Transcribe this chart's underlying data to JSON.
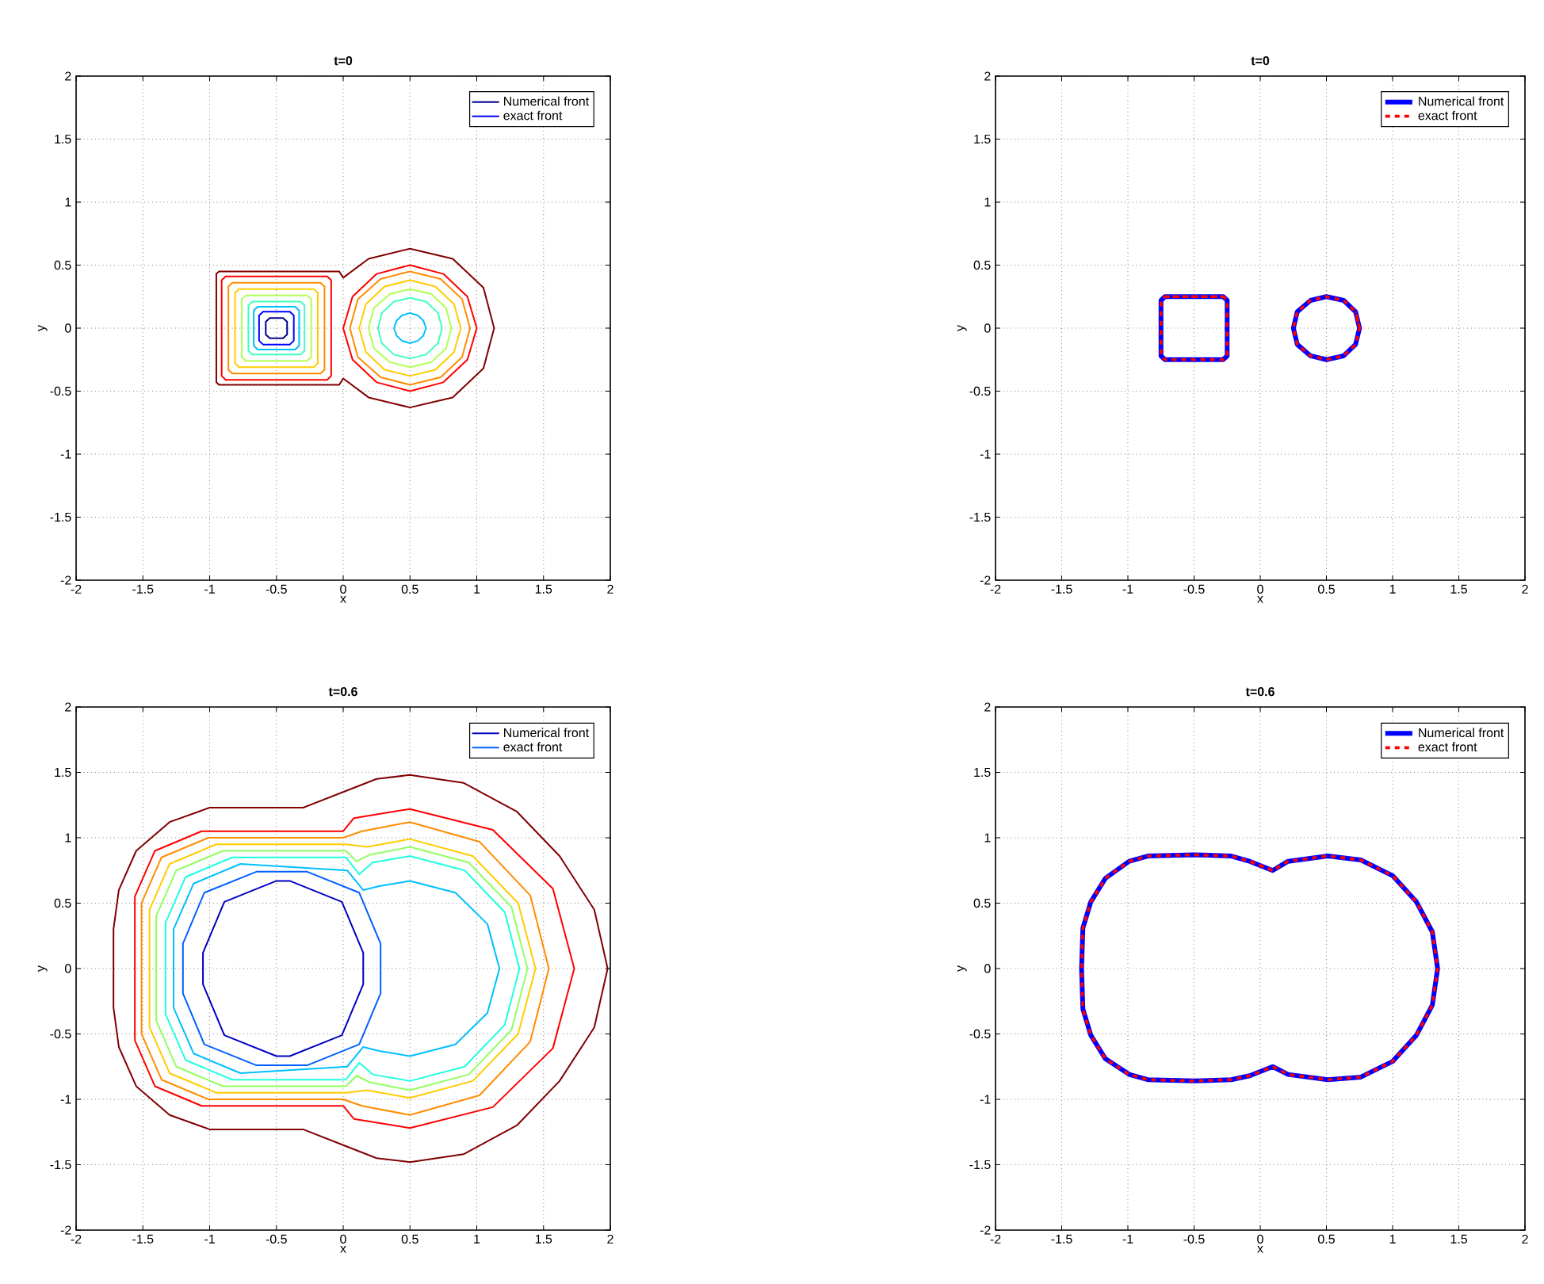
{
  "chart_data": [
    {
      "type": "line",
      "title": "t=0",
      "xlabel": "x",
      "ylabel": "y",
      "xlim": [
        -2,
        2
      ],
      "ylim": [
        -2,
        2
      ],
      "xticks": [
        -2,
        -1.5,
        -1,
        -0.5,
        0,
        0.5,
        1,
        1.5,
        2
      ],
      "yticks": [
        -2,
        -1.5,
        -1,
        -0.5,
        0,
        0.5,
        1,
        1.5,
        2
      ],
      "grid": true,
      "legend": "top right",
      "series": [
        {
          "name": "Numerical front",
          "color": "#00008f",
          "x": [
            -0.55,
            -0.45,
            -0.42,
            -0.42,
            -0.45,
            -0.55,
            -0.58,
            -0.58,
            -0.55,
            -0.45
          ],
          "values": [
            0.08,
            0.08,
            0.05,
            -0.05,
            -0.08,
            -0.08,
            -0.05,
            0.05,
            0.08,
            0.08
          ]
        },
        {
          "name": "exact front",
          "color": "#0000ff",
          "x": [
            -0.6,
            -0.4,
            -0.37,
            -0.37,
            -0.4,
            -0.6,
            -0.63,
            -0.63,
            -0.6,
            -0.4
          ],
          "values": [
            0.13,
            0.13,
            0.1,
            -0.1,
            -0.13,
            -0.13,
            -0.1,
            0.1,
            0.13,
            0.13
          ]
        },
        {
          "color": "#800000",
          "x": [
            -0.03,
            -0.93,
            -0.95,
            -0.95,
            -0.93,
            -0.03,
            0.0,
            0.19,
            0.5,
            0.82,
            1.05,
            1.13,
            1.05,
            0.82,
            0.5,
            0.19,
            0.0,
            -0.03,
            -0.93
          ],
          "values": [
            0.45,
            0.45,
            0.43,
            -0.43,
            -0.45,
            -0.45,
            -0.4,
            -0.55,
            -0.63,
            -0.55,
            -0.32,
            0,
            0.32,
            0.55,
            0.63,
            0.55,
            0.4,
            0.45,
            0.45
          ]
        },
        {
          "color": "#ff0000",
          "x": [
            -0.88,
            -0.12,
            -0.09,
            -0.09,
            -0.12,
            -0.88,
            -0.91,
            -0.91,
            -0.88,
            -0.12,
            null,
            1.0,
            0.93,
            0.75,
            0.5,
            0.25,
            0.07,
            0,
            0.07,
            0.25,
            0.5,
            0.75,
            0.93,
            1.0,
            0.93
          ],
          "values": [
            0.41,
            0.41,
            0.38,
            -0.38,
            -0.41,
            -0.41,
            -0.38,
            0.38,
            0.41,
            0.41,
            null,
            0,
            0.25,
            0.43,
            0.5,
            0.43,
            0.25,
            0,
            -0.25,
            -0.43,
            -0.5,
            -0.43,
            -0.25,
            0,
            0.25
          ]
        },
        {
          "color": "#ff8c00",
          "x": [
            -0.83,
            -0.17,
            -0.14,
            -0.14,
            -0.17,
            -0.83,
            -0.86,
            -0.86,
            -0.83,
            -0.17,
            null,
            0.95,
            0.89,
            0.73,
            0.5,
            0.28,
            0.11,
            0.05,
            0.11,
            0.28,
            0.5,
            0.73,
            0.89,
            0.95,
            0.89
          ],
          "values": [
            0.36,
            0.36,
            0.33,
            -0.33,
            -0.36,
            -0.36,
            -0.33,
            0.33,
            0.36,
            0.36,
            null,
            0,
            0.23,
            0.39,
            0.45,
            0.39,
            0.23,
            0,
            -0.23,
            -0.39,
            -0.45,
            -0.39,
            -0.23,
            0,
            0.23
          ]
        },
        {
          "color": "#ffcc00",
          "x": [
            -0.78,
            -0.22,
            -0.19,
            -0.19,
            -0.22,
            -0.78,
            -0.81,
            -0.81,
            -0.78,
            -0.22,
            null,
            0.88,
            0.83,
            0.69,
            0.5,
            0.31,
            0.17,
            0.12,
            0.17,
            0.31,
            0.5,
            0.69,
            0.83,
            0.88,
            0.83
          ],
          "values": [
            0.31,
            0.31,
            0.28,
            -0.28,
            -0.31,
            -0.31,
            -0.28,
            0.28,
            0.31,
            0.31,
            null,
            0,
            0.19,
            0.33,
            0.38,
            0.33,
            0.19,
            0,
            -0.19,
            -0.33,
            -0.38,
            -0.33,
            -0.19,
            0,
            0.19
          ]
        },
        {
          "color": "#b0ff50",
          "x": [
            -0.73,
            -0.27,
            -0.24,
            -0.24,
            -0.27,
            -0.73,
            -0.76,
            -0.76,
            -0.73,
            -0.27,
            null,
            0.81,
            0.77,
            0.66,
            0.5,
            0.35,
            0.23,
            0.19,
            0.23,
            0.35,
            0.5,
            0.66,
            0.77,
            0.81,
            0.77
          ],
          "values": [
            0.26,
            0.26,
            0.23,
            -0.23,
            -0.26,
            -0.26,
            -0.23,
            0.23,
            0.26,
            0.26,
            null,
            0,
            0.16,
            0.27,
            0.31,
            0.27,
            0.16,
            0,
            -0.16,
            -0.27,
            -0.31,
            -0.27,
            -0.16,
            0,
            0.16
          ]
        },
        {
          "color": "#40ffbf",
          "x": [
            -0.68,
            -0.32,
            -0.29,
            -0.29,
            -0.32,
            -0.68,
            -0.71,
            -0.71,
            -0.68,
            -0.32,
            null,
            0.74,
            0.71,
            0.62,
            0.5,
            0.38,
            0.29,
            0.26,
            0.29,
            0.38,
            0.5,
            0.62,
            0.71,
            0.74,
            0.71
          ],
          "values": [
            0.21,
            0.21,
            0.18,
            -0.18,
            -0.21,
            -0.21,
            -0.18,
            0.18,
            0.21,
            0.21,
            null,
            0,
            0.12,
            0.21,
            0.24,
            0.21,
            0.12,
            0,
            -0.12,
            -0.21,
            -0.24,
            -0.21,
            -0.12,
            0,
            0.12
          ]
        },
        {
          "color": "#00bfff",
          "x": [
            -0.64,
            -0.36,
            -0.33,
            -0.33,
            -0.36,
            -0.64,
            -0.67,
            -0.67,
            -0.64,
            -0.36,
            null,
            0.62,
            0.6,
            0.56,
            0.5,
            0.44,
            0.4,
            0.38,
            0.4,
            0.44,
            0.5,
            0.56,
            0.6,
            0.62,
            0.6
          ],
          "values": [
            0.17,
            0.17,
            0.14,
            -0.14,
            -0.17,
            -0.17,
            -0.14,
            0.14,
            0.17,
            0.17,
            null,
            0,
            0.06,
            0.1,
            0.12,
            0.1,
            0.06,
            0,
            -0.06,
            -0.1,
            -0.12,
            -0.1,
            -0.06,
            0,
            0.06
          ]
        }
      ]
    },
    {
      "type": "line",
      "title": "t=0",
      "xlabel": "x",
      "ylabel": "y",
      "xlim": [
        -2,
        2
      ],
      "ylim": [
        -2,
        2
      ],
      "xticks": [
        -2,
        -1.5,
        -1,
        -0.5,
        0,
        0.5,
        1,
        1.5,
        2
      ],
      "yticks": [
        -2,
        -1.5,
        -1,
        -0.5,
        0,
        0.5,
        1,
        1.5,
        2
      ],
      "grid": true,
      "legend": "top right",
      "series": [
        {
          "name": "Numerical front",
          "color": "#0000ff",
          "x": [
            -0.72,
            -0.28,
            -0.25,
            -0.25,
            -0.28,
            -0.72,
            -0.75,
            -0.75,
            -0.72,
            -0.28,
            null,
            0.75,
            0.72,
            0.63,
            0.5,
            0.38,
            0.28,
            0.25,
            0.28,
            0.38,
            0.5,
            0.63,
            0.72,
            0.75,
            0.72
          ],
          "values": [
            0.25,
            0.25,
            0.22,
            -0.22,
            -0.25,
            -0.25,
            -0.22,
            0.22,
            0.25,
            0.25,
            null,
            0,
            0.13,
            0.22,
            0.25,
            0.22,
            0.13,
            0,
            -0.13,
            -0.22,
            -0.25,
            -0.22,
            -0.13,
            0,
            0.13
          ]
        },
        {
          "name": "exact front",
          "color": "#ff0000",
          "line_style": "dashed",
          "x": [
            -0.72,
            -0.28,
            -0.25,
            -0.25,
            -0.28,
            -0.72,
            -0.75,
            -0.75,
            -0.72,
            -0.28,
            null,
            0.75,
            0.72,
            0.63,
            0.5,
            0.38,
            0.28,
            0.25,
            0.28,
            0.38,
            0.5,
            0.63,
            0.72,
            0.75,
            0.72
          ],
          "values": [
            0.25,
            0.25,
            0.22,
            -0.22,
            -0.25,
            -0.25,
            -0.22,
            0.22,
            0.25,
            0.25,
            null,
            0,
            0.13,
            0.22,
            0.25,
            0.22,
            0.13,
            0,
            -0.13,
            -0.22,
            -0.25,
            -0.22,
            -0.13,
            0,
            0.13
          ]
        }
      ]
    },
    {
      "type": "line",
      "title": "t=0.6",
      "xlabel": "x",
      "ylabel": "y",
      "xlim": [
        -2,
        2
      ],
      "ylim": [
        -2,
        2
      ],
      "xticks": [
        -2,
        -1.5,
        -1,
        -0.5,
        0,
        0.5,
        1,
        1.5,
        2
      ],
      "yticks": [
        -2,
        -1.5,
        -1,
        -0.5,
        0,
        0.5,
        1,
        1.5,
        2
      ],
      "grid": true,
      "legend": "top right",
      "series": [
        {
          "name": "Numerical front",
          "color": "#0000c0",
          "x": [
            0.15,
            -0.01,
            -0.4,
            -0.5,
            -0.89,
            -1.05,
            -1.05,
            -0.89,
            -0.5,
            -0.4,
            -0.01,
            0.15,
            0.15,
            -0.01
          ],
          "values": [
            0.12,
            0.51,
            0.67,
            0.67,
            0.51,
            0.12,
            -0.12,
            -0.51,
            -0.67,
            -0.67,
            -0.51,
            -0.12,
            0.12,
            0.51
          ]
        },
        {
          "name": "exact front",
          "color": "#0060ff",
          "x": [
            0.28,
            0.12,
            -0.27,
            -0.65,
            -1.04,
            -1.2,
            -1.2,
            -1.04,
            -0.65,
            -0.27,
            0.12,
            0.28,
            0.28,
            0.12
          ],
          "values": [
            0.19,
            0.58,
            0.74,
            0.74,
            0.58,
            0.19,
            -0.19,
            -0.58,
            -0.74,
            -0.74,
            -0.58,
            -0.19,
            0.19,
            0.58
          ]
        },
        {
          "color": "#800000",
          "x": [
            -0.3,
            -1.0,
            -1.3,
            -1.55,
            -1.68,
            -1.72,
            -1.72,
            -1.68,
            -1.55,
            -1.3,
            -1.0,
            -0.3,
            0.0,
            0.25,
            0.5,
            0.9,
            1.3,
            1.62,
            1.88,
            1.98,
            1.88,
            1.62,
            1.3,
            0.9,
            0.5,
            0.25,
            0.0,
            -0.3,
            -1.0
          ],
          "values": [
            1.23,
            1.23,
            1.12,
            0.9,
            0.6,
            0.3,
            -0.3,
            -0.6,
            -0.9,
            -1.12,
            -1.23,
            -1.23,
            -1.35,
            -1.45,
            -1.48,
            -1.42,
            -1.2,
            -0.86,
            -0.45,
            0,
            0.45,
            0.86,
            1.2,
            1.42,
            1.48,
            1.45,
            1.35,
            1.23,
            1.23
          ]
        },
        {
          "color": "#ff0000",
          "x": [
            1.73,
            1.57,
            1.12,
            0.5,
            0.08,
            0.0,
            -1.06,
            -1.41,
            -1.56,
            -1.56,
            -1.41,
            -1.06,
            0.0,
            0.08,
            0.5,
            1.12,
            1.57,
            1.73,
            1.57
          ],
          "values": [
            0,
            0.61,
            1.06,
            1.22,
            1.15,
            1.05,
            1.05,
            0.9,
            0.55,
            -0.55,
            -0.9,
            -1.05,
            -1.05,
            -1.15,
            -1.22,
            -1.06,
            -0.61,
            0,
            0.61
          ]
        },
        {
          "color": "#ff8c00",
          "x": [
            1.54,
            1.4,
            1.02,
            0.5,
            0.14,
            0.0,
            -1.01,
            -1.36,
            -1.51,
            -1.51,
            -1.36,
            -1.01,
            0.0,
            0.14,
            0.5,
            1.02,
            1.4,
            1.54,
            1.4
          ],
          "values": [
            0,
            0.56,
            0.97,
            1.12,
            1.05,
            1.0,
            1.0,
            0.85,
            0.5,
            -0.5,
            -0.85,
            -1.0,
            -1.0,
            -1.05,
            -1.12,
            -0.97,
            -0.56,
            0,
            0.56
          ]
        },
        {
          "color": "#ffcc00",
          "x": [
            1.44,
            1.31,
            0.97,
            0.5,
            0.18,
            0.02,
            -0.95,
            -1.3,
            -1.45,
            -1.45,
            -1.3,
            -0.95,
            0.02,
            0.18,
            0.5,
            0.97,
            1.31,
            1.44,
            1.31
          ],
          "values": [
            0,
            0.5,
            0.86,
            0.99,
            0.93,
            0.95,
            0.95,
            0.8,
            0.45,
            -0.45,
            -0.8,
            -0.95,
            -0.95,
            -0.93,
            -0.99,
            -0.86,
            -0.5,
            0,
            0.5
          ]
        },
        {
          "color": "#90ff60",
          "x": [
            1.38,
            1.26,
            0.94,
            0.5,
            0.2,
            0.1,
            0.02,
            -0.9,
            -1.25,
            -1.4,
            -1.4,
            -1.25,
            -0.9,
            0.02,
            0.1,
            0.2,
            0.5,
            0.94,
            1.26,
            1.38,
            1.26
          ],
          "values": [
            0,
            0.47,
            0.81,
            0.93,
            0.87,
            0.82,
            0.9,
            0.9,
            0.75,
            0.4,
            -0.4,
            -0.75,
            -0.9,
            -0.9,
            -0.82,
            -0.87,
            -0.93,
            -0.81,
            -0.47,
            0,
            0.47
          ]
        },
        {
          "color": "#20ffe0",
          "x": [
            1.32,
            1.21,
            0.91,
            0.5,
            0.22,
            0.12,
            0.02,
            -0.83,
            -1.18,
            -1.33,
            -1.33,
            -1.18,
            -0.83,
            0.02,
            0.12,
            0.22,
            0.5,
            0.91,
            1.21,
            1.32,
            1.21
          ],
          "values": [
            0,
            0.43,
            0.75,
            0.86,
            0.81,
            0.72,
            0.85,
            0.85,
            0.7,
            0.35,
            -0.35,
            -0.7,
            -0.85,
            -0.85,
            -0.72,
            -0.81,
            -0.86,
            -0.75,
            -0.43,
            0,
            0.43
          ]
        },
        {
          "color": "#00bfff",
          "x": [
            1.17,
            1.08,
            0.84,
            0.5,
            0.27,
            0.15,
            0.03,
            -0.77,
            -1.12,
            -1.27,
            -1.27,
            -1.12,
            -0.77,
            0.03,
            0.15,
            0.27,
            0.5,
            0.84,
            1.08,
            1.17,
            1.08
          ],
          "values": [
            0,
            0.34,
            0.58,
            0.67,
            0.63,
            0.6,
            0.75,
            0.8,
            0.65,
            0.3,
            -0.3,
            -0.65,
            -0.8,
            -0.75,
            -0.6,
            -0.63,
            -0.67,
            -0.58,
            -0.34,
            0,
            0.34
          ]
        }
      ]
    },
    {
      "type": "line",
      "title": "t=0.6",
      "xlabel": "x",
      "ylabel": "y",
      "xlim": [
        -2,
        2
      ],
      "ylim": [
        -2,
        2
      ],
      "xticks": [
        -2,
        -1.5,
        -1,
        -0.5,
        0,
        0.5,
        1,
        1.5,
        2
      ],
      "yticks": [
        -2,
        -1.5,
        -1,
        -0.5,
        0,
        0.5,
        1,
        1.5,
        2
      ],
      "grid": true,
      "legend": "top right",
      "series": [
        {
          "name": "Numerical front",
          "color": "#0000ff",
          "x": [
            0.094,
            -0.08,
            -0.22,
            -0.5,
            -0.85,
            -0.99,
            -1.17,
            -1.28,
            -1.34,
            -1.35,
            -1.34,
            -1.28,
            -1.17,
            -0.99,
            -0.85,
            -0.5,
            -0.22,
            -0.08,
            0.094,
            0.21,
            0.51,
            0.76,
            1.0,
            1.18,
            1.3,
            1.34,
            1.3,
            1.18,
            1.0,
            0.76,
            0.51,
            0.21,
            0.094,
            -0.08
          ],
          "values": [
            0.75,
            0.82,
            0.86,
            0.87,
            0.86,
            0.82,
            0.69,
            0.51,
            0.31,
            0,
            -0.31,
            -0.51,
            -0.69,
            -0.81,
            -0.85,
            -0.86,
            -0.85,
            -0.82,
            -0.75,
            -0.81,
            -0.85,
            -0.83,
            -0.71,
            -0.51,
            -0.28,
            0,
            0.28,
            0.51,
            0.71,
            0.83,
            0.86,
            0.82,
            0.75,
            0.82
          ]
        },
        {
          "name": "exact front",
          "color": "#ff0000",
          "line_style": "dashed",
          "x": [
            0.094,
            -0.08,
            -0.22,
            -0.5,
            -0.85,
            -0.99,
            -1.17,
            -1.28,
            -1.34,
            -1.35,
            -1.34,
            -1.28,
            -1.17,
            -0.99,
            -0.85,
            -0.5,
            -0.22,
            -0.08,
            0.094,
            0.21,
            0.51,
            0.76,
            1.0,
            1.18,
            1.3,
            1.34,
            1.3,
            1.18,
            1.0,
            0.76,
            0.51,
            0.21,
            0.094,
            -0.08
          ],
          "values": [
            0.75,
            0.82,
            0.86,
            0.87,
            0.86,
            0.82,
            0.69,
            0.51,
            0.31,
            0,
            -0.31,
            -0.51,
            -0.69,
            -0.81,
            -0.85,
            -0.86,
            -0.85,
            -0.82,
            -0.75,
            -0.81,
            -0.85,
            -0.83,
            -0.71,
            -0.51,
            -0.28,
            0,
            0.28,
            0.51,
            0.71,
            0.83,
            0.86,
            0.82,
            0.75,
            0.82
          ]
        }
      ]
    }
  ]
}
